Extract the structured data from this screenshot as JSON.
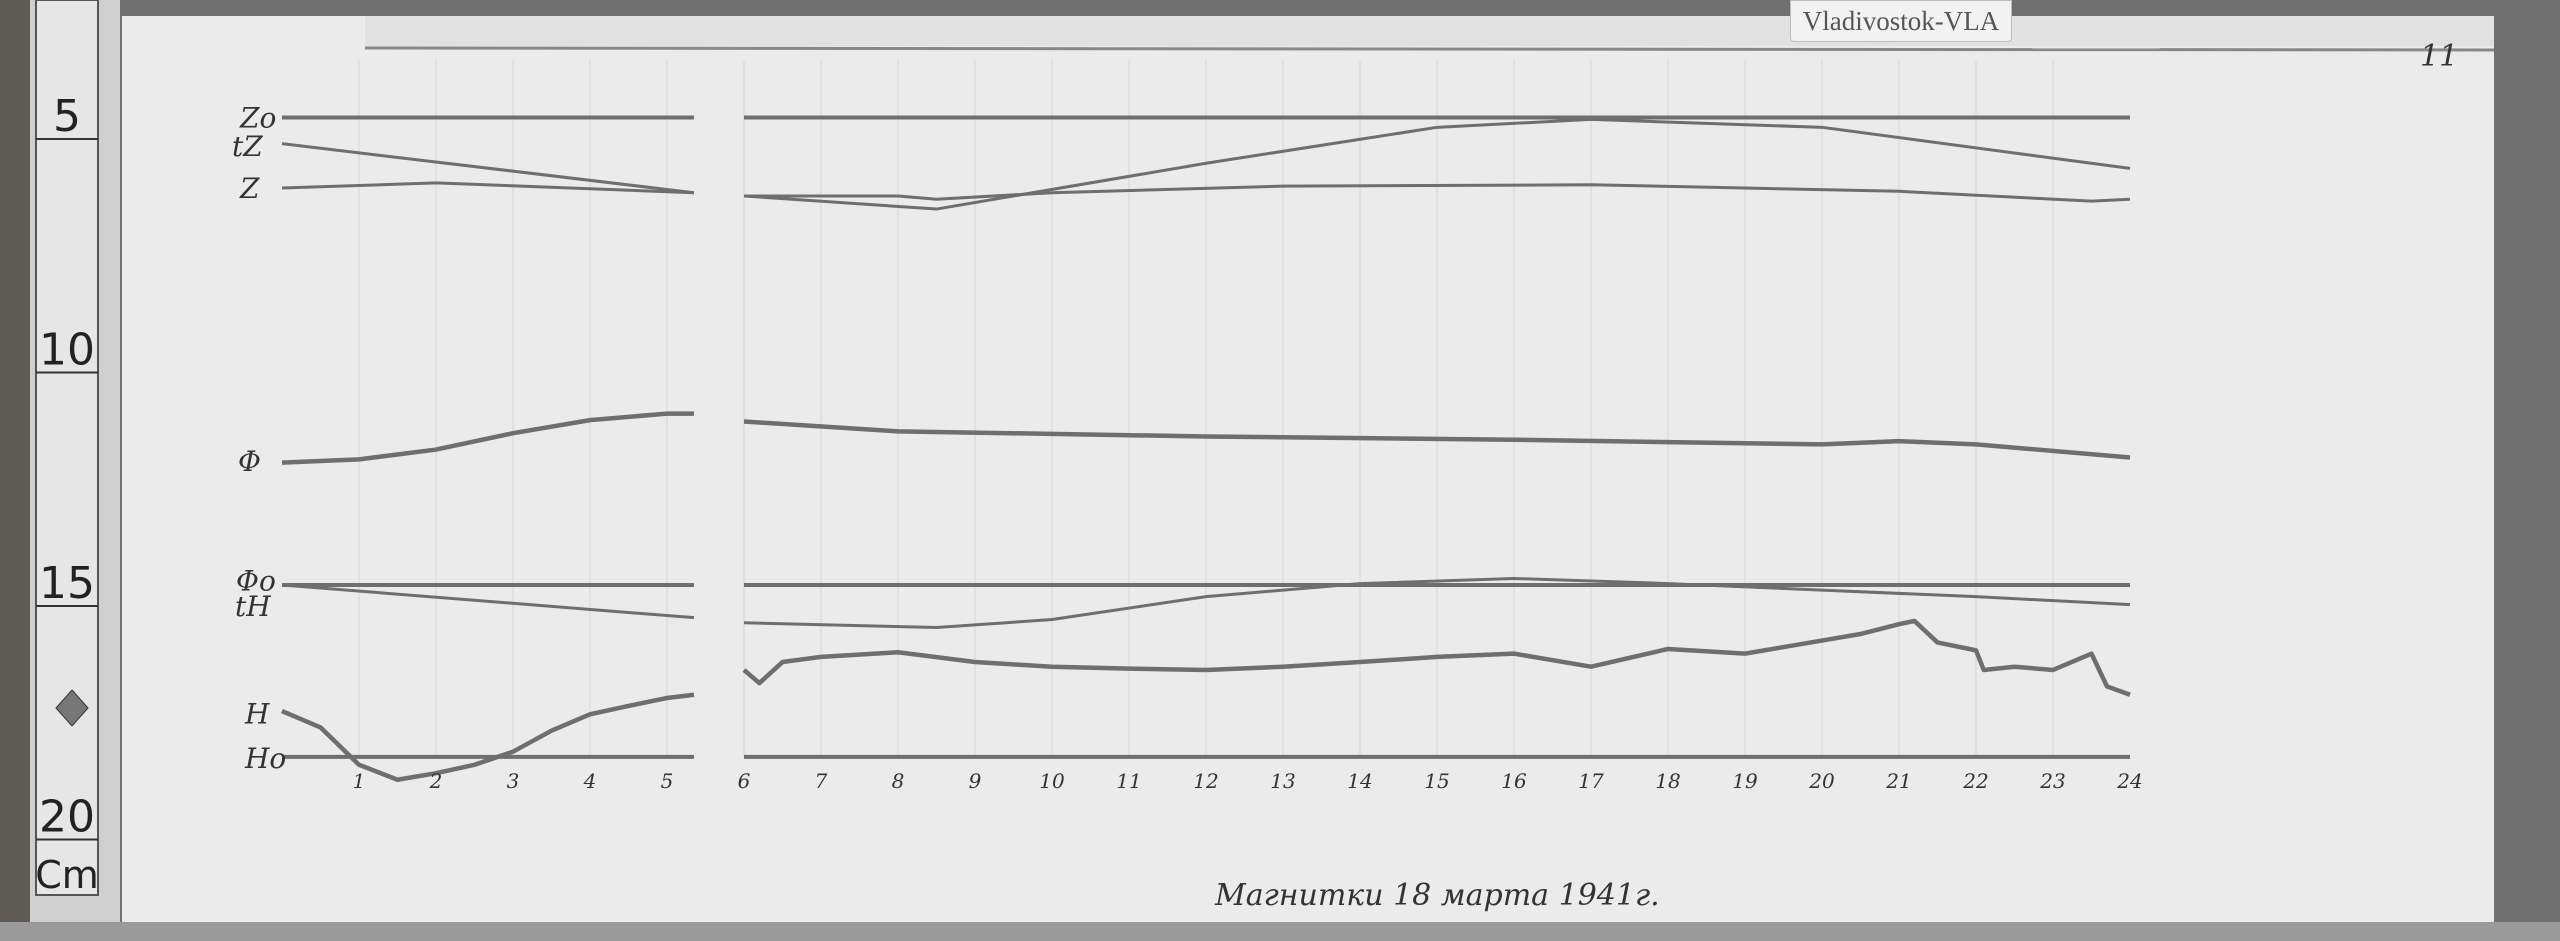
{
  "label_tag": "Vladivostok-VLA",
  "sheet_number": "11",
  "caption": "Магнитки 18 марта 1941г.",
  "ruler": {
    "ticks": [
      "5",
      "10",
      "15",
      "20"
    ],
    "unit": "Cm"
  },
  "colors": {
    "paper": "#ebebeb",
    "trace": "#6e6e6e",
    "ink": "#333333"
  },
  "chart_data": {
    "type": "line",
    "x_unit_note": "hours",
    "x_ticks": [
      "1",
      "2",
      "3",
      "4",
      "5",
      "6",
      "7",
      "8",
      "9",
      "10",
      "11",
      "12",
      "13",
      "14",
      "15",
      "16",
      "17",
      "18",
      "19",
      "20",
      "21",
      "22",
      "23",
      "24"
    ],
    "xlim": [
      0,
      24
    ],
    "y_scale": "ruler cm (increasing downward)",
    "gap_hours": [
      5.35,
      6.0
    ],
    "trace_labels": [
      "Zo",
      "tZ",
      "Z",
      "Φ",
      "Φo",
      "tH",
      "H",
      "Ho"
    ],
    "series": [
      {
        "name": "Zo",
        "kind": "baseline",
        "x": [
          0,
          24
        ],
        "y": [
          4.54,
          4.54
        ]
      },
      {
        "name": "tZ",
        "kind": "temperature",
        "x": [
          0,
          5.35,
          6,
          8.5,
          12,
          15,
          17,
          20,
          24
        ],
        "y": [
          5.1,
          6.15,
          6.22,
          6.5,
          5.52,
          4.75,
          4.58,
          4.75,
          5.63
        ]
      },
      {
        "name": "Z",
        "kind": "trace",
        "x": [
          0,
          2,
          5.35,
          6,
          8,
          8.5,
          10,
          13,
          17,
          21,
          23.5,
          24
        ],
        "y": [
          6.05,
          5.94,
          6.15,
          6.22,
          6.22,
          6.29,
          6.15,
          6.01,
          5.98,
          6.12,
          6.33,
          6.29
        ]
      },
      {
        "name": "Φ",
        "kind": "trace",
        "x": [
          0,
          1,
          2,
          3,
          4,
          5,
          5.35,
          6,
          8,
          12,
          16,
          20,
          21,
          22,
          24
        ],
        "y": [
          11.93,
          11.86,
          11.65,
          11.3,
          11.02,
          10.88,
          10.88,
          11.05,
          11.26,
          11.37,
          11.44,
          11.54,
          11.47,
          11.54,
          11.82
        ]
      },
      {
        "name": "Φo",
        "kind": "baseline",
        "x": [
          0,
          24
        ],
        "y": [
          14.55,
          14.55
        ]
      },
      {
        "name": "tH",
        "kind": "temperature",
        "x": [
          0,
          5.35,
          6,
          8.5,
          10,
          12,
          14,
          16,
          18,
          20,
          22,
          24
        ],
        "y": [
          14.55,
          15.25,
          15.36,
          15.46,
          15.29,
          14.8,
          14.52,
          14.41,
          14.52,
          14.66,
          14.8,
          14.97
        ]
      },
      {
        "name": "H",
        "kind": "trace",
        "x": [
          0,
          0.5,
          1,
          1.5,
          2,
          2.5,
          3,
          3.5,
          4,
          4.5,
          5,
          5.35,
          6,
          6.2,
          6.5,
          7,
          8,
          9,
          10,
          11,
          12,
          13,
          14,
          15,
          16,
          17,
          18,
          19,
          20,
          20.5,
          21,
          21.2,
          21.5,
          22,
          22.1,
          22.5,
          23,
          23.5,
          23.7,
          24
        ],
        "y": [
          17.25,
          17.6,
          18.4,
          18.72,
          18.58,
          18.4,
          18.12,
          17.67,
          17.32,
          17.14,
          16.97,
          16.9,
          16.37,
          16.65,
          16.2,
          16.09,
          15.99,
          16.2,
          16.3,
          16.34,
          16.37,
          16.3,
          16.2,
          16.09,
          16.02,
          16.3,
          15.92,
          16.02,
          15.74,
          15.6,
          15.39,
          15.32,
          15.78,
          15.95,
          16.37,
          16.3,
          16.37,
          16.02,
          16.72,
          16.9
        ]
      },
      {
        "name": "Ho",
        "kind": "baseline",
        "x": [
          0,
          24
        ],
        "y": [
          18.23,
          18.23
        ]
      }
    ]
  }
}
